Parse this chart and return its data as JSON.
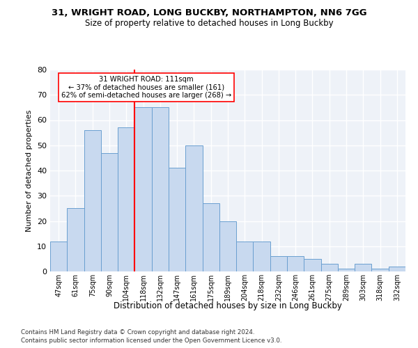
{
  "title1": "31, WRIGHT ROAD, LONG BUCKBY, NORTHAMPTON, NN6 7GG",
  "title2": "Size of property relative to detached houses in Long Buckby",
  "xlabel": "Distribution of detached houses by size in Long Buckby",
  "ylabel": "Number of detached properties",
  "categories": [
    "47sqm",
    "61sqm",
    "75sqm",
    "90sqm",
    "104sqm",
    "118sqm",
    "132sqm",
    "147sqm",
    "161sqm",
    "175sqm",
    "189sqm",
    "204sqm",
    "218sqm",
    "232sqm",
    "246sqm",
    "261sqm",
    "275sqm",
    "289sqm",
    "303sqm",
    "318sqm",
    "332sqm"
  ],
  "values": [
    12,
    25,
    56,
    47,
    57,
    65,
    65,
    41,
    50,
    27,
    20,
    12,
    12,
    6,
    6,
    5,
    3,
    1,
    3,
    1,
    2
  ],
  "bar_color": "#c8d9ef",
  "bar_edge_color": "#6a9fd0",
  "red_line_x": 4.5,
  "annotation_line1": "31 WRIGHT ROAD: 111sqm",
  "annotation_line2": "← 37% of detached houses are smaller (161)",
  "annotation_line3": "62% of semi-detached houses are larger (268) →",
  "annotation_box_color": "white",
  "annotation_box_edge": "red",
  "ylim": [
    0,
    80
  ],
  "yticks": [
    0,
    10,
    20,
    30,
    40,
    50,
    60,
    70,
    80
  ],
  "bg_color": "#eef2f8",
  "grid_color": "white",
  "footer1": "Contains HM Land Registry data © Crown copyright and database right 2024.",
  "footer2": "Contains public sector information licensed under the Open Government Licence v3.0."
}
